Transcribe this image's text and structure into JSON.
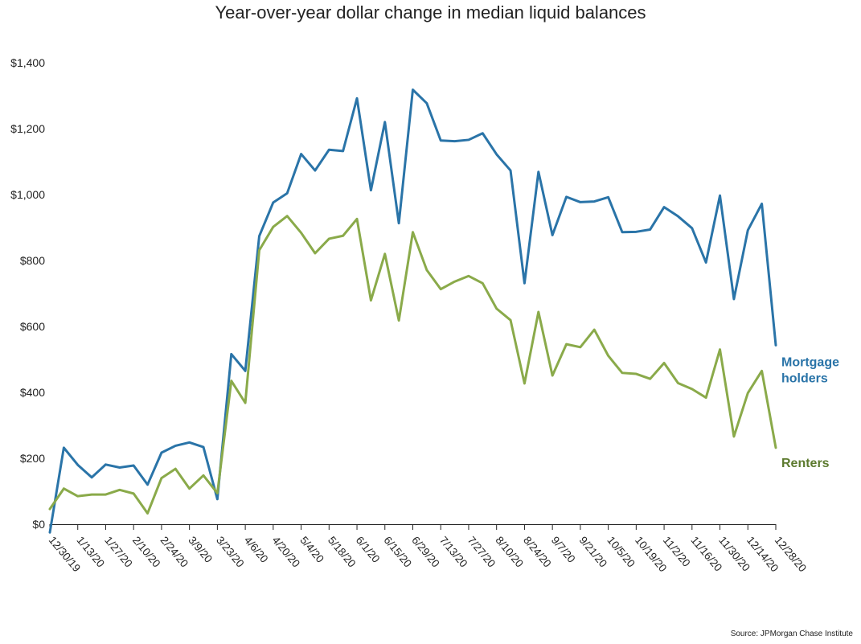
{
  "chart_data": {
    "type": "line",
    "title": "Year-over-year dollar change in median liquid balances",
    "xlabel": "",
    "ylabel": "",
    "ylim": [
      0,
      1400
    ],
    "y_ticks": [
      "$1,400",
      "$1,200",
      "$1,000",
      "$800",
      "$600",
      "$400",
      "$200",
      "$0"
    ],
    "y_tick_values": [
      1400,
      1200,
      1000,
      800,
      600,
      400,
      200,
      0
    ],
    "x_tick_labels": [
      "12/30/19",
      "1/13/20",
      "1/27/20",
      "2/10/20",
      "2/24/20",
      "3/9/20",
      "3/23/20",
      "4/6/20",
      "4/20/20",
      "5/4/20",
      "5/18/20",
      "6/1/20",
      "6/15/20",
      "6/29/20",
      "7/13/20",
      "7/27/20",
      "8/10/20",
      "8/24/20",
      "9/7/20",
      "9/21/20",
      "10/5/20",
      "10/19/20",
      "11/2/20",
      "11/16/20",
      "11/30/20",
      "12/14/20",
      "12/28/20"
    ],
    "grid": false,
    "series": [
      {
        "name": "Mortgage holders",
        "label_lines": [
          "Mortgage",
          "holders"
        ],
        "color": "#2a74a8",
        "values": [
          -25,
          232,
          180,
          142,
          181,
          172,
          178,
          120,
          217,
          238,
          248,
          234,
          76,
          516,
          465,
          874,
          976,
          1004,
          1123,
          1073,
          1136,
          1132,
          1292,
          1013,
          1220,
          913,
          1318,
          1277,
          1164,
          1162,
          1166,
          1186,
          1122,
          1073,
          731,
          1069,
          877,
          993,
          977,
          979,
          992,
          886,
          887,
          894,
          962,
          934,
          898,
          794,
          997,
          683,
          892,
          972,
          543
        ]
      },
      {
        "name": "Renters",
        "label_lines": [
          "Renters"
        ],
        "color": "#8aaa4a",
        "label_color": "#5c7a2e",
        "values": [
          46,
          108,
          85,
          90,
          90,
          104,
          93,
          33,
          140,
          168,
          108,
          148,
          94,
          435,
          368,
          831,
          902,
          935,
          884,
          822,
          866,
          875,
          926,
          679,
          820,
          618,
          886,
          771,
          713,
          736,
          753,
          731,
          654,
          619,
          427,
          644,
          451,
          546,
          537,
          590,
          511,
          459,
          456,
          441,
          489,
          428,
          410,
          384,
          530,
          266,
          398,
          465,
          232
        ]
      }
    ]
  },
  "source": "Source: JPMorgan Chase Institute"
}
